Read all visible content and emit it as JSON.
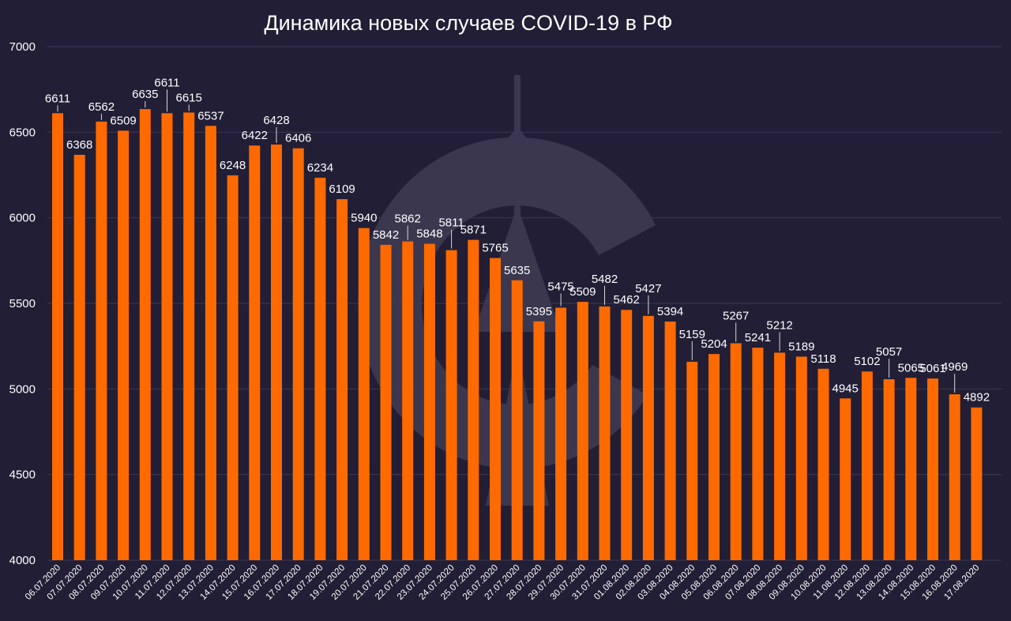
{
  "colors": {
    "background": "#211e35",
    "bar": "#ff6a00",
    "text": "#ffffff",
    "grid": "#3c3957",
    "watermark": "#3a374e"
  },
  "watermark": {
    "icon": "tower-logo-icon"
  },
  "chart_data": {
    "type": "bar",
    "title": "Динамика новых случаев COVID-19 в РФ",
    "xlabel": "",
    "ylabel": "",
    "ylim": [
      4000,
      7000
    ],
    "yticks": [
      "4000",
      "4500",
      "5000",
      "5500",
      "6000",
      "6500",
      "7000"
    ],
    "grid": true,
    "legend": "none",
    "categories": [
      "06.07.2020",
      "07.07.2020",
      "08.07.2020",
      "09.07.2020",
      "10.07.2020",
      "11.07.2020",
      "12.07.2020",
      "13.07.2020",
      "14.07.2020",
      "15.07.2020",
      "16.07.2020",
      "17.07.2020",
      "18.07.2020",
      "19.07.2020",
      "20.07.2020",
      "21.07.2020",
      "22.07.2020",
      "23.07.2020",
      "24.07.2020",
      "25.07.2020",
      "26.07.2020",
      "27.07.2020",
      "28.07.2020",
      "29.07.2020",
      "30.07.2020",
      "31.07.2020",
      "01.08.2020",
      "02.08.2020",
      "03.08.2020",
      "04.08.2020",
      "05.08.2020",
      "06.08.2020",
      "07.08.2020",
      "08.08.2020",
      "09.08.2020",
      "10.08.2020",
      "11.08.2020",
      "12.08.2020",
      "13.08.2020",
      "14.08.2020",
      "15.08.2020",
      "16.08.2020",
      "17.08.2020"
    ],
    "values": [
      6611,
      6368,
      6562,
      6509,
      6635,
      6611,
      6615,
      6537,
      6248,
      6422,
      6428,
      6406,
      6234,
      6109,
      5940,
      5842,
      5862,
      5848,
      5811,
      5871,
      5765,
      5635,
      5395,
      5475,
      5509,
      5482,
      5462,
      5427,
      5394,
      5159,
      5204,
      5267,
      5241,
      5212,
      5189,
      5118,
      4945,
      5102,
      5057,
      5065,
      5061,
      4969,
      4892
    ],
    "data_labels": [
      "6611",
      "6368",
      "6562",
      "6509",
      "6635",
      "6611",
      "6615",
      "6537",
      "6248",
      "6422",
      "6428",
      "6406",
      "6234",
      "6109",
      "5940",
      "5842",
      "5862",
      "5848",
      "5811",
      "5871",
      "5765",
      "5635",
      "5395",
      "5475",
      "5509",
      "5482",
      "5462",
      "5427",
      "5394",
      "5159",
      "5204",
      "5267",
      "5241",
      "5212",
      "5189",
      "5118",
      "4945",
      "5102",
      "5057",
      "5065",
      "5061",
      "4969",
      "4892"
    ]
  }
}
